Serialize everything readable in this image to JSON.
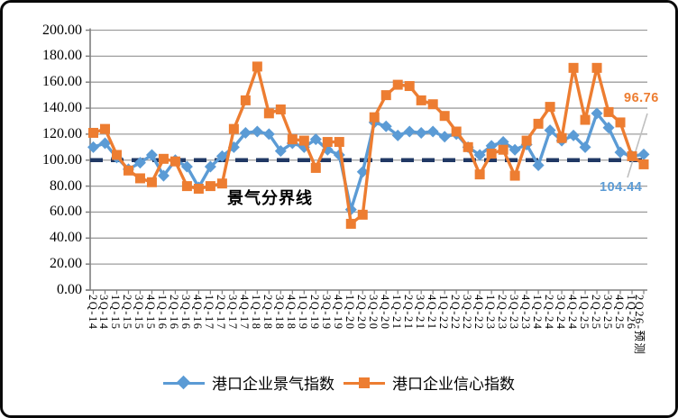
{
  "chart_data": {
    "type": "line",
    "title": "",
    "categories": [
      "2Q-14",
      "3Q-14",
      "1Q-15",
      "2Q-15",
      "3Q-15",
      "4Q-15",
      "1Q-16",
      "2Q-16",
      "3Q-16",
      "4Q-16",
      "1Q-17",
      "2Q-17",
      "3Q-17",
      "4Q-17",
      "1Q-18",
      "2Q-18",
      "3Q-18",
      "4Q-18",
      "1Q-19",
      "2Q-19",
      "3Q-19",
      "4Q-19",
      "1Q-20",
      "2Q-20",
      "3Q-20",
      "4Q-20",
      "1Q-21",
      "2Q-21",
      "3Q-21",
      "4Q-21",
      "1Q-22",
      "2Q-22",
      "3Q-22",
      "4Q-22",
      "1Q-23",
      "2Q-23",
      "3Q-23",
      "4Q-23",
      "1Q-24",
      "2Q-24",
      "3Q-24",
      "4Q-24",
      "1Q-25",
      "2Q-25",
      "3Q-25",
      "4Q-25",
      "1Q-26",
      "2Q26-预测"
    ],
    "series": [
      {
        "name": "港口企业景气指数",
        "color": "#5B9BD5",
        "marker": "diamond",
        "values": [
          110,
          113,
          102,
          93,
          98,
          104,
          88,
          100,
          95,
          79,
          95,
          103,
          110,
          121,
          122,
          120,
          107,
          113,
          110,
          116,
          108,
          104,
          62,
          91,
          129,
          126,
          119,
          122,
          121,
          122,
          118,
          120,
          110,
          104,
          111,
          114,
          108,
          112,
          96,
          123,
          115,
          119,
          110,
          136,
          125,
          106,
          103,
          104.44
        ]
      },
      {
        "name": "港口企业信心指数",
        "color": "#ED7D31",
        "marker": "square",
        "values": [
          121,
          124,
          104,
          92,
          86,
          83,
          101,
          99,
          80,
          78,
          80,
          82,
          124,
          146,
          172,
          136,
          139,
          116,
          115,
          94,
          114,
          114,
          51,
          58,
          133,
          150,
          158,
          157,
          146,
          143,
          134,
          122,
          110,
          89,
          105,
          108,
          88,
          115,
          128,
          141,
          117,
          171,
          131,
          171,
          137,
          129,
          103,
          96.76
        ]
      }
    ],
    "yaxis": {
      "min": 0,
      "max": 200,
      "step": 20,
      "decimals": 2
    },
    "baseline": {
      "value": 100,
      "label": "景气分界线",
      "color": "#203864"
    },
    "annotations": [
      {
        "id": "confidence-end",
        "text": "96.76",
        "color": "#ED7D31"
      },
      {
        "id": "prosperity-end",
        "text": "104.44",
        "color": "#5B9BD5"
      }
    ],
    "grid": true,
    "legend_position": "bottom",
    "grid_color": "#9e9e9e",
    "leader_line_color": "#bfbfbf"
  }
}
